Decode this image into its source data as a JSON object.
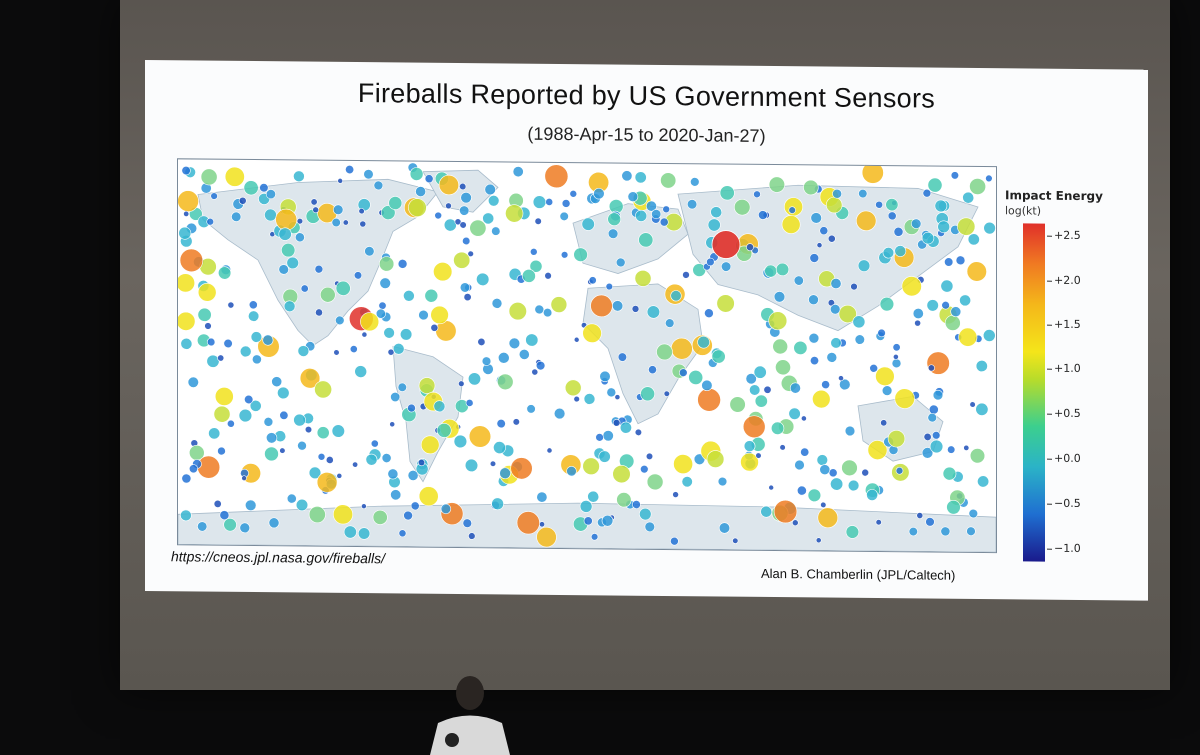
{
  "slide": {
    "title": "Fireballs Reported by US Government Sensors",
    "subtitle": "(1988-Apr-15 to 2020-Jan-27)",
    "url": "https://cneos.jpl.nasa.gov/fireballs/",
    "credit": "Alan B. Chamberlin (JPL/Caltech)"
  },
  "colorbar": {
    "title": "Impact Energy",
    "unit": "log(kt)",
    "ticks": [
      "+2.5",
      "+2.0",
      "+1.5",
      "+1.0",
      "+0.5",
      "+0.0",
      "−0.5",
      "−1.0"
    ]
  },
  "colors": {
    "ocean": "#ffffff",
    "land": "#dde6ec",
    "border": "#9fb3c2",
    "low": "#1a1a8c",
    "high": "#e0302a"
  }
}
